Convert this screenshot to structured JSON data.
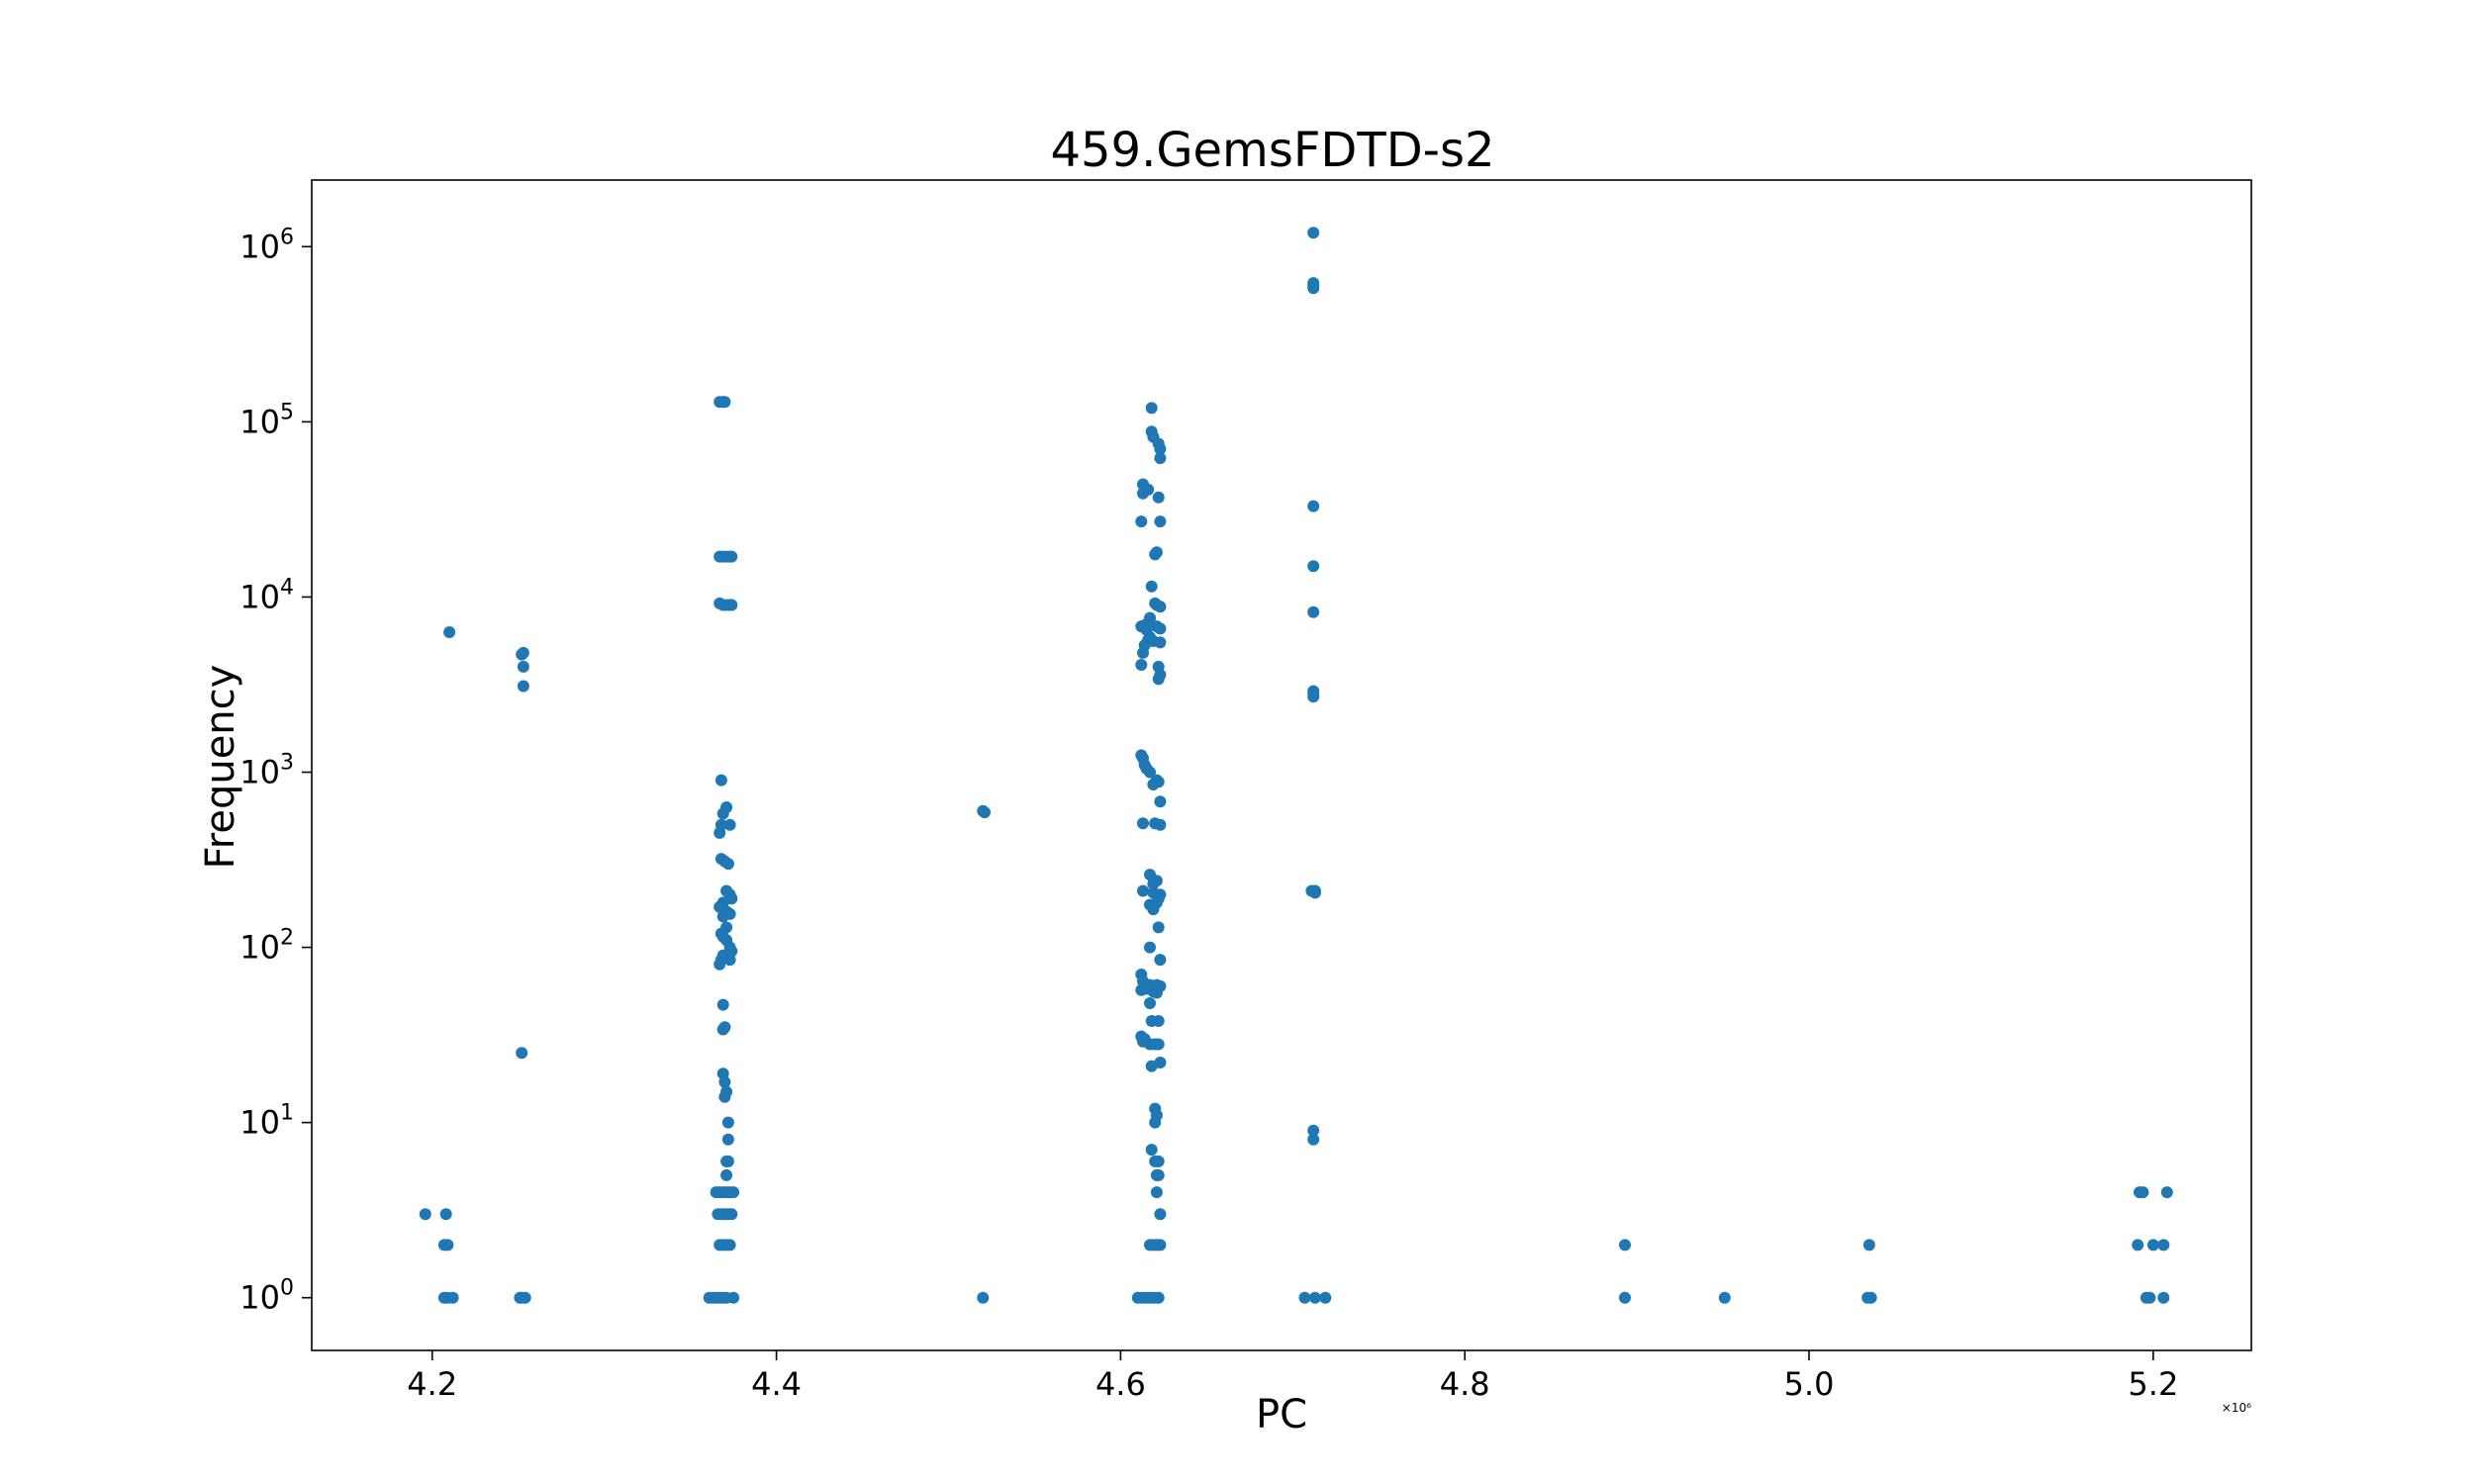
{
  "chart_data": {
    "type": "scatter",
    "title": "459.GemsFDTD-s2",
    "xlabel": "PC",
    "ylabel": "Frequency",
    "x_offset_label": "×10⁶",
    "x_scale": "linear",
    "y_scale": "log",
    "xlim": [
      4.13,
      5.257
    ],
    "ylim": [
      0.5,
      2400000
    ],
    "x_ticks": [
      {
        "value": 4.2,
        "label": "4.2"
      },
      {
        "value": 4.4,
        "label": "4.4"
      },
      {
        "value": 4.6,
        "label": "4.6"
      },
      {
        "value": 4.8,
        "label": "4.8"
      },
      {
        "value": 5.0,
        "label": "5.0"
      },
      {
        "value": 5.2,
        "label": "5.2"
      }
    ],
    "y_ticks": [
      {
        "value": 1,
        "base": "10",
        "exp": "0"
      },
      {
        "value": 10,
        "base": "10",
        "exp": "1"
      },
      {
        "value": 100,
        "base": "10",
        "exp": "2"
      },
      {
        "value": 1000,
        "base": "10",
        "exp": "3"
      },
      {
        "value": 10000,
        "base": "10",
        "exp": "4"
      },
      {
        "value": 100000,
        "base": "10",
        "exp": "5"
      },
      {
        "value": 1000000,
        "base": "10",
        "exp": "6"
      }
    ],
    "grid": false,
    "marker_color": "#1f77b4",
    "series": [
      {
        "points": [
          [
            4.196,
            3
          ],
          [
            4.208,
            3
          ],
          [
            4.207,
            2
          ],
          [
            4.209,
            2
          ],
          [
            4.21,
            6300
          ],
          [
            4.207,
            1
          ],
          [
            4.209,
            1
          ],
          [
            4.212,
            1
          ],
          [
            4.252,
            4700
          ],
          [
            4.253,
            4800
          ],
          [
            4.253,
            4000
          ],
          [
            4.253,
            3100
          ],
          [
            4.252,
            25
          ],
          [
            4.251,
            1
          ],
          [
            4.252,
            1
          ],
          [
            4.254,
            1
          ],
          [
            4.367,
            130000
          ],
          [
            4.369,
            130000
          ],
          [
            4.37,
            130000
          ],
          [
            4.367,
            17000
          ],
          [
            4.369,
            17000
          ],
          [
            4.371,
            17000
          ],
          [
            4.373,
            17000
          ],
          [
            4.374,
            17000
          ],
          [
            4.367,
            9200
          ],
          [
            4.369,
            9000
          ],
          [
            4.371,
            9000
          ],
          [
            4.373,
            9000
          ],
          [
            4.374,
            9000
          ],
          [
            4.368,
            900
          ],
          [
            4.371,
            630
          ],
          [
            4.369,
            580
          ],
          [
            4.373,
            500
          ],
          [
            4.368,
            500
          ],
          [
            4.367,
            450
          ],
          [
            4.368,
            320
          ],
          [
            4.37,
            310
          ],
          [
            4.372,
            300
          ],
          [
            4.371,
            210
          ],
          [
            4.373,
            200
          ],
          [
            4.374,
            190
          ],
          [
            4.369,
            180
          ],
          [
            4.367,
            170
          ],
          [
            4.371,
            160
          ],
          [
            4.373,
            155
          ],
          [
            4.369,
            150
          ],
          [
            4.371,
            130
          ],
          [
            4.368,
            120
          ],
          [
            4.369,
            115
          ],
          [
            4.371,
            110
          ],
          [
            4.373,
            100
          ],
          [
            4.374,
            95
          ],
          [
            4.369,
            90
          ],
          [
            4.371,
            88
          ],
          [
            4.373,
            85
          ],
          [
            4.368,
            85
          ],
          [
            4.367,
            80
          ],
          [
            4.369,
            47
          ],
          [
            4.37,
            35
          ],
          [
            4.369,
            34
          ],
          [
            4.369,
            19
          ],
          [
            4.37,
            17
          ],
          [
            4.371,
            15
          ],
          [
            4.37,
            14
          ],
          [
            4.372,
            10
          ],
          [
            4.372,
            8
          ],
          [
            4.371,
            6
          ],
          [
            4.372,
            6
          ],
          [
            4.371,
            5
          ],
          [
            4.365,
            4
          ],
          [
            4.367,
            4
          ],
          [
            4.369,
            4
          ],
          [
            4.371,
            4
          ],
          [
            4.373,
            4
          ],
          [
            4.375,
            4
          ],
          [
            4.366,
            3
          ],
          [
            4.368,
            3
          ],
          [
            4.37,
            3
          ],
          [
            4.372,
            3
          ],
          [
            4.374,
            3
          ],
          [
            4.367,
            2
          ],
          [
            4.369,
            2
          ],
          [
            4.371,
            2
          ],
          [
            4.373,
            2
          ],
          [
            4.361,
            1
          ],
          [
            4.363,
            1
          ],
          [
            4.365,
            1
          ],
          [
            4.367,
            1
          ],
          [
            4.369,
            1
          ],
          [
            4.371,
            1
          ],
          [
            4.375,
            1
          ],
          [
            4.52,
            600
          ],
          [
            4.521,
            590
          ],
          [
            4.52,
            1
          ],
          [
            4.618,
            120000
          ],
          [
            4.618,
            88000
          ],
          [
            4.619,
            82000
          ],
          [
            4.622,
            75000
          ],
          [
            4.623,
            70000
          ],
          [
            4.623,
            62000
          ],
          [
            4.613,
            44000
          ],
          [
            4.616,
            41000
          ],
          [
            4.613,
            39000
          ],
          [
            4.622,
            37000
          ],
          [
            4.612,
            27000
          ],
          [
            4.623,
            27000
          ],
          [
            4.621,
            18000
          ],
          [
            4.62,
            17500
          ],
          [
            4.618,
            11500
          ],
          [
            4.62,
            9200
          ],
          [
            4.621,
            9000
          ],
          [
            4.623,
            8800
          ],
          [
            4.617,
            7600
          ],
          [
            4.615,
            7000
          ],
          [
            4.612,
            6800
          ],
          [
            4.621,
            6800
          ],
          [
            4.623,
            6600
          ],
          [
            4.615,
            6500
          ],
          [
            4.617,
            5900
          ],
          [
            4.616,
            5700
          ],
          [
            4.619,
            5600
          ],
          [
            4.623,
            5500
          ],
          [
            4.614,
            5300
          ],
          [
            4.613,
            4800
          ],
          [
            4.612,
            4100
          ],
          [
            4.622,
            4000
          ],
          [
            4.623,
            3600
          ],
          [
            4.622,
            3400
          ],
          [
            4.612,
            1250
          ],
          [
            4.613,
            1200
          ],
          [
            4.614,
            1100
          ],
          [
            4.615,
            1050
          ],
          [
            4.617,
            1000
          ],
          [
            4.621,
            900
          ],
          [
            4.622,
            880
          ],
          [
            4.619,
            850
          ],
          [
            4.623,
            680
          ],
          [
            4.613,
            510
          ],
          [
            4.62,
            510
          ],
          [
            4.623,
            500
          ],
          [
            4.617,
            260
          ],
          [
            4.621,
            240
          ],
          [
            4.619,
            230
          ],
          [
            4.613,
            210
          ],
          [
            4.619,
            205
          ],
          [
            4.623,
            200
          ],
          [
            4.622,
            190
          ],
          [
            4.621,
            180
          ],
          [
            4.617,
            175
          ],
          [
            4.619,
            165
          ],
          [
            4.622,
            130
          ],
          [
            4.617,
            100
          ],
          [
            4.623,
            85
          ],
          [
            4.612,
            70
          ],
          [
            4.613,
            64
          ],
          [
            4.617,
            61
          ],
          [
            4.621,
            61
          ],
          [
            4.623,
            60
          ],
          [
            4.615,
            58
          ],
          [
            4.612,
            57
          ],
          [
            4.619,
            56
          ],
          [
            4.621,
            55
          ],
          [
            4.617,
            48
          ],
          [
            4.618,
            38
          ],
          [
            4.622,
            38
          ],
          [
            4.612,
            31
          ],
          [
            4.614,
            30
          ],
          [
            4.613,
            29
          ],
          [
            4.617,
            28
          ],
          [
            4.62,
            28
          ],
          [
            4.622,
            28
          ],
          [
            4.618,
            21
          ],
          [
            4.623,
            22
          ],
          [
            4.62,
            12
          ],
          [
            4.621,
            11
          ],
          [
            4.62,
            10
          ],
          [
            4.618,
            7
          ],
          [
            4.62,
            6
          ],
          [
            4.622,
            6
          ],
          [
            4.621,
            5
          ],
          [
            4.622,
            5
          ],
          [
            4.621,
            4
          ],
          [
            4.623,
            3
          ],
          [
            4.617,
            2
          ],
          [
            4.619,
            2
          ],
          [
            4.621,
            2
          ],
          [
            4.623,
            2
          ],
          [
            4.61,
            1
          ],
          [
            4.612,
            1
          ],
          [
            4.614,
            1
          ],
          [
            4.616,
            1
          ],
          [
            4.618,
            1
          ],
          [
            4.62,
            1
          ],
          [
            4.622,
            1
          ],
          [
            4.712,
            1200000
          ],
          [
            4.712,
            620000
          ],
          [
            4.712,
            600000
          ],
          [
            4.712,
            580000
          ],
          [
            4.712,
            33000
          ],
          [
            4.712,
            15000
          ],
          [
            4.712,
            8200
          ],
          [
            4.712,
            2900
          ],
          [
            4.712,
            2800
          ],
          [
            4.712,
            2700
          ],
          [
            4.711,
            210
          ],
          [
            4.713,
            210
          ],
          [
            4.713,
            205
          ],
          [
            4.712,
            9
          ],
          [
            4.712,
            8
          ],
          [
            4.707,
            1
          ],
          [
            4.713,
            1
          ],
          [
            4.719,
            1
          ],
          [
            4.893,
            2
          ],
          [
            4.893,
            1
          ],
          [
            4.951,
            1
          ],
          [
            5.035,
            2
          ],
          [
            5.034,
            1
          ],
          [
            5.036,
            1
          ],
          [
            5.192,
            4
          ],
          [
            5.194,
            4
          ],
          [
            5.208,
            4
          ],
          [
            5.191,
            2
          ],
          [
            5.2,
            2
          ],
          [
            5.206,
            2
          ],
          [
            5.196,
            1
          ],
          [
            5.198,
            1
          ],
          [
            5.206,
            1
          ]
        ]
      }
    ]
  }
}
